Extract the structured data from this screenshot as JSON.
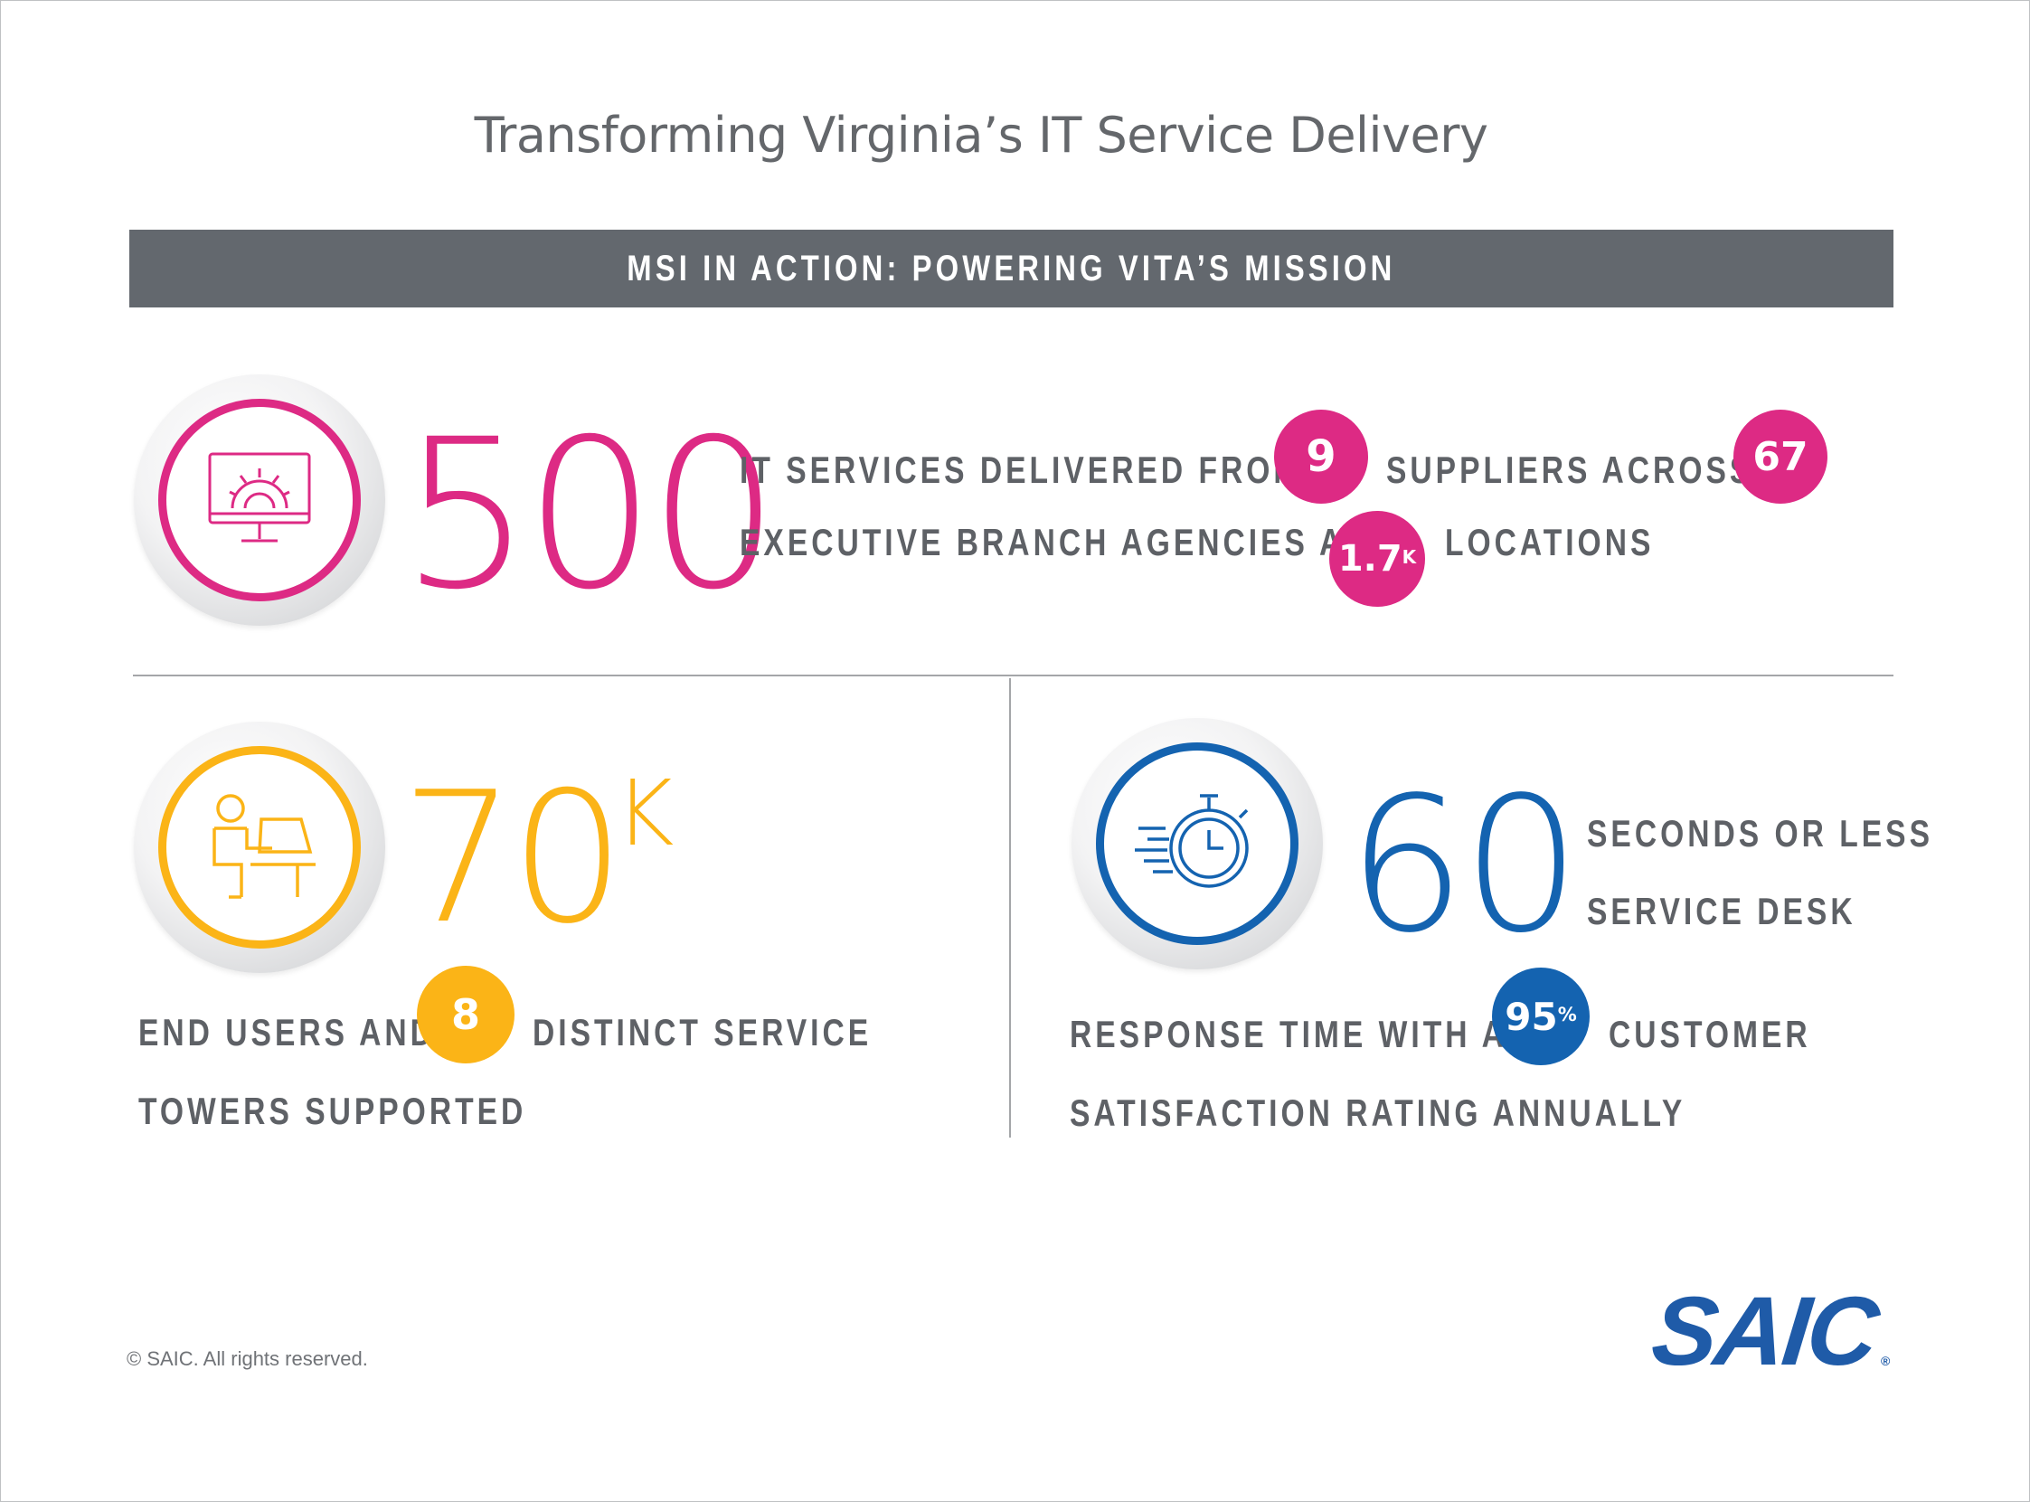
{
  "title": "Transforming Virginia’s IT Service Delivery",
  "banner": "MSI IN ACTION: POWERING VITA’S MISSION",
  "colors": {
    "magenta": "#dd2a84",
    "gold": "#fbb417",
    "blue": "#1463b0",
    "gray_text": "#5e6166",
    "banner_bg": "#63686e"
  },
  "stat1": {
    "icon": "monitor-gear-icon",
    "number": "500",
    "line1_a": "IT SERVICES DELIVERED FROM",
    "badge1": "9",
    "line1_b": "SUPPLIERS ACROSS",
    "badge2": "67",
    "line2_a": "EXECUTIVE BRANCH AGENCIES AT",
    "badge3": "1.7",
    "badge3_suffix": "K",
    "line2_b": "LOCATIONS"
  },
  "stat2": {
    "icon": "person-laptop-icon",
    "number": "70",
    "suffix": "K",
    "line1_a": "END USERS AND",
    "badge": "8",
    "line1_b": "DISTINCT SERVICE",
    "line2": "TOWERS SUPPORTED"
  },
  "stat3": {
    "icon": "stopwatch-icon",
    "number": "60",
    "line1": "SECONDS OR LESS",
    "line2": "SERVICE DESK",
    "line3_a": "RESPONSE TIME WITH A",
    "badge": "95",
    "badge_suffix": "%",
    "line3_b": "CUSTOMER",
    "line4": "SATISFACTION RATING ANNUALLY"
  },
  "footer": {
    "copyright": "© SAIC. All rights reserved.",
    "logo": "SAIC",
    "logo_mark": "®"
  }
}
